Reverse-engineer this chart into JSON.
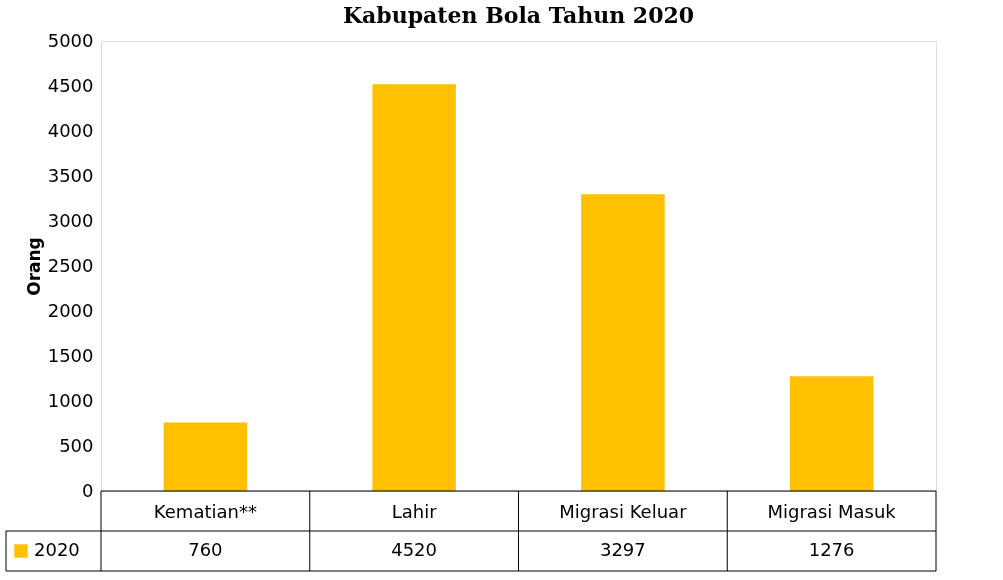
{
  "chart_data": {
    "type": "bar",
    "title": "Kabupaten Bola Tahun 2020",
    "ylabel": "Orang",
    "categories": [
      "Kematian**",
      "Lahir",
      "Migrasi Keluar",
      "Migrasi Masuk"
    ],
    "series": [
      {
        "name": "2020",
        "color": "#ffc000",
        "values": [
          760,
          4520,
          3297,
          1276
        ]
      }
    ],
    "ylim": [
      0,
      5000
    ],
    "yticks": [
      0,
      500,
      1000,
      1500,
      2000,
      2500,
      3000,
      3500,
      4000,
      4500,
      5000
    ],
    "grid": false,
    "legend": "bottom",
    "data_labels": true
  }
}
